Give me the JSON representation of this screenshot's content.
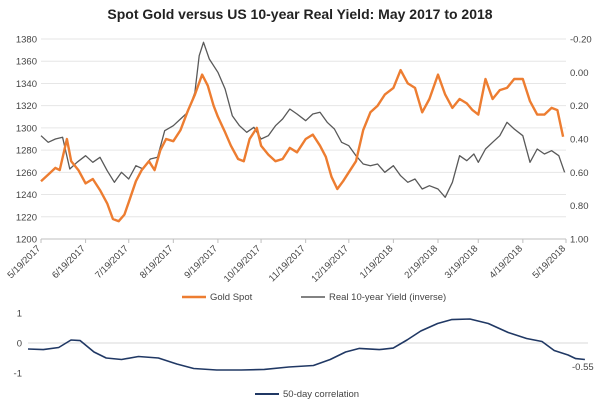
{
  "chart_data": [
    {
      "type": "line",
      "title": "Spot Gold versus US 10-year Real Yield: May 2017 to 2018",
      "x_ticks": [
        "5/19/2017",
        "6/19/2017",
        "7/19/2017",
        "8/19/2017",
        "9/19/2017",
        "10/19/2017",
        "11/19/2017",
        "12/19/2017",
        "1/19/2018",
        "2/19/2018",
        "3/19/2018",
        "4/19/2018",
        "5/19/2018"
      ],
      "y_left": {
        "ylim": [
          1200,
          1380
        ],
        "ticks": [
          "1200",
          "1220",
          "1240",
          "1260",
          "1280",
          "1300",
          "1320",
          "1340",
          "1360",
          "1380"
        ]
      },
      "y_right": {
        "ylim": [
          -0.2,
          1.0
        ],
        "inverted": true,
        "ticks": [
          "-0.20",
          "0.00",
          "0.20",
          "0.40",
          "0.60",
          "0.80",
          "1.00"
        ]
      },
      "grid": {
        "horizontal": true
      },
      "legend": {
        "position": "bottom"
      },
      "series": [
        {
          "name": "Gold Spot",
          "axis": "left",
          "color": "#ED7D31",
          "points": [
            [
              "2017-05-19",
              1252
            ],
            [
              "2017-05-24",
              1258
            ],
            [
              "2017-05-29",
              1264
            ],
            [
              "2017-06-01",
              1262
            ],
            [
              "2017-06-06",
              1290
            ],
            [
              "2017-06-09",
              1270
            ],
            [
              "2017-06-14",
              1262
            ],
            [
              "2017-06-19",
              1250
            ],
            [
              "2017-06-24",
              1254
            ],
            [
              "2017-06-29",
              1244
            ],
            [
              "2017-07-04",
              1232
            ],
            [
              "2017-07-08",
              1218
            ],
            [
              "2017-07-12",
              1216
            ],
            [
              "2017-07-16",
              1222
            ],
            [
              "2017-07-19",
              1233
            ],
            [
              "2017-07-24",
              1252
            ],
            [
              "2017-07-28",
              1262
            ],
            [
              "2017-08-02",
              1270
            ],
            [
              "2017-08-06",
              1262
            ],
            [
              "2017-08-10",
              1280
            ],
            [
              "2017-08-14",
              1290
            ],
            [
              "2017-08-19",
              1288
            ],
            [
              "2017-08-24",
              1298
            ],
            [
              "2017-08-29",
              1315
            ],
            [
              "2017-09-03",
              1330
            ],
            [
              "2017-09-08",
              1348
            ],
            [
              "2017-09-12",
              1338
            ],
            [
              "2017-09-16",
              1320
            ],
            [
              "2017-09-19",
              1310
            ],
            [
              "2017-09-24",
              1296
            ],
            [
              "2017-09-28",
              1284
            ],
            [
              "2017-10-03",
              1272
            ],
            [
              "2017-10-07",
              1270
            ],
            [
              "2017-10-11",
              1290
            ],
            [
              "2017-10-16",
              1300
            ],
            [
              "2017-10-19",
              1284
            ],
            [
              "2017-10-24",
              1276
            ],
            [
              "2017-10-29",
              1270
            ],
            [
              "2017-11-03",
              1272
            ],
            [
              "2017-11-08",
              1282
            ],
            [
              "2017-11-13",
              1278
            ],
            [
              "2017-11-19",
              1290
            ],
            [
              "2017-11-24",
              1294
            ],
            [
              "2017-11-29",
              1284
            ],
            [
              "2017-12-03",
              1274
            ],
            [
              "2017-12-07",
              1256
            ],
            [
              "2017-12-11",
              1245
            ],
            [
              "2017-12-15",
              1252
            ],
            [
              "2017-12-19",
              1260
            ],
            [
              "2017-12-24",
              1270
            ],
            [
              "2017-12-29",
              1298
            ],
            [
              "2018-01-03",
              1314
            ],
            [
              "2018-01-08",
              1320
            ],
            [
              "2018-01-13",
              1330
            ],
            [
              "2018-01-19",
              1336
            ],
            [
              "2018-01-24",
              1352
            ],
            [
              "2018-01-29",
              1340
            ],
            [
              "2018-02-03",
              1336
            ],
            [
              "2018-02-08",
              1314
            ],
            [
              "2018-02-13",
              1326
            ],
            [
              "2018-02-19",
              1348
            ],
            [
              "2018-02-24",
              1330
            ],
            [
              "2018-03-01",
              1318
            ],
            [
              "2018-03-06",
              1326
            ],
            [
              "2018-03-11",
              1322
            ],
            [
              "2018-03-15",
              1316
            ],
            [
              "2018-03-19",
              1312
            ],
            [
              "2018-03-24",
              1344
            ],
            [
              "2018-03-29",
              1326
            ],
            [
              "2018-04-03",
              1334
            ],
            [
              "2018-04-08",
              1336
            ],
            [
              "2018-04-13",
              1344
            ],
            [
              "2018-04-19",
              1344
            ],
            [
              "2018-04-24",
              1324
            ],
            [
              "2018-04-29",
              1312
            ],
            [
              "2018-05-04",
              1312
            ],
            [
              "2018-05-09",
              1318
            ],
            [
              "2018-05-13",
              1316
            ],
            [
              "2018-05-17",
              1292
            ]
          ]
        },
        {
          "name": "Real 10-year Yield (inverse)",
          "axis": "right",
          "color": "#595959",
          "points": [
            [
              "2017-05-19",
              0.38
            ],
            [
              "2017-05-24",
              0.42
            ],
            [
              "2017-05-29",
              0.4
            ],
            [
              "2017-06-03",
              0.39
            ],
            [
              "2017-06-08",
              0.58
            ],
            [
              "2017-06-13",
              0.54
            ],
            [
              "2017-06-19",
              0.5
            ],
            [
              "2017-06-24",
              0.54
            ],
            [
              "2017-06-29",
              0.51
            ],
            [
              "2017-07-04",
              0.59
            ],
            [
              "2017-07-09",
              0.66
            ],
            [
              "2017-07-14",
              0.6
            ],
            [
              "2017-07-19",
              0.64
            ],
            [
              "2017-07-24",
              0.56
            ],
            [
              "2017-07-29",
              0.58
            ],
            [
              "2017-08-03",
              0.52
            ],
            [
              "2017-08-08",
              0.51
            ],
            [
              "2017-08-13",
              0.35
            ],
            [
              "2017-08-19",
              0.32
            ],
            [
              "2017-08-24",
              0.28
            ],
            [
              "2017-08-29",
              0.24
            ],
            [
              "2017-09-03",
              0.12
            ],
            [
              "2017-09-06",
              -0.1
            ],
            [
              "2017-09-09",
              -0.18
            ],
            [
              "2017-09-13",
              -0.08
            ],
            [
              "2017-09-19",
              0.0
            ],
            [
              "2017-09-24",
              0.1
            ],
            [
              "2017-09-29",
              0.26
            ],
            [
              "2017-10-04",
              0.32
            ],
            [
              "2017-10-09",
              0.36
            ],
            [
              "2017-10-14",
              0.33
            ],
            [
              "2017-10-19",
              0.4
            ],
            [
              "2017-10-24",
              0.38
            ],
            [
              "2017-10-29",
              0.32
            ],
            [
              "2017-11-03",
              0.28
            ],
            [
              "2017-11-08",
              0.22
            ],
            [
              "2017-11-13",
              0.25
            ],
            [
              "2017-11-19",
              0.29
            ],
            [
              "2017-11-24",
              0.25
            ],
            [
              "2017-11-29",
              0.24
            ],
            [
              "2017-12-04",
              0.3
            ],
            [
              "2017-12-09",
              0.34
            ],
            [
              "2017-12-14",
              0.42
            ],
            [
              "2017-12-19",
              0.44
            ],
            [
              "2017-12-24",
              0.5
            ],
            [
              "2017-12-29",
              0.55
            ],
            [
              "2018-01-03",
              0.56
            ],
            [
              "2018-01-08",
              0.55
            ],
            [
              "2018-01-13",
              0.6
            ],
            [
              "2018-01-19",
              0.56
            ],
            [
              "2018-01-24",
              0.62
            ],
            [
              "2018-01-29",
              0.66
            ],
            [
              "2018-02-03",
              0.64
            ],
            [
              "2018-02-08",
              0.7
            ],
            [
              "2018-02-13",
              0.68
            ],
            [
              "2018-02-19",
              0.7
            ],
            [
              "2018-02-24",
              0.75
            ],
            [
              "2018-03-01",
              0.66
            ],
            [
              "2018-03-06",
              0.5
            ],
            [
              "2018-03-11",
              0.53
            ],
            [
              "2018-03-16",
              0.49
            ],
            [
              "2018-03-19",
              0.54
            ],
            [
              "2018-03-24",
              0.46
            ],
            [
              "2018-03-29",
              0.42
            ],
            [
              "2018-04-03",
              0.38
            ],
            [
              "2018-04-08",
              0.3
            ],
            [
              "2018-04-13",
              0.34
            ],
            [
              "2018-04-19",
              0.38
            ],
            [
              "2018-04-24",
              0.54
            ],
            [
              "2018-04-29",
              0.46
            ],
            [
              "2018-05-04",
              0.49
            ],
            [
              "2018-05-09",
              0.47
            ],
            [
              "2018-05-14",
              0.5
            ],
            [
              "2018-05-18",
              0.6
            ]
          ]
        }
      ]
    },
    {
      "type": "line",
      "y_ticks": [
        "1",
        "0",
        "-1"
      ],
      "ylim": [
        -1,
        1
      ],
      "legend": {
        "position": "bottom"
      },
      "end_label": "-0.55",
      "series": [
        {
          "name": "50-day correlation",
          "color": "#203864",
          "points": [
            [
              "2017-05-19",
              -0.2
            ],
            [
              "2017-05-29",
              -0.22
            ],
            [
              "2017-06-08",
              -0.15
            ],
            [
              "2017-06-16",
              0.1
            ],
            [
              "2017-06-22",
              0.08
            ],
            [
              "2017-07-01",
              -0.3
            ],
            [
              "2017-07-09",
              -0.5
            ],
            [
              "2017-07-19",
              -0.55
            ],
            [
              "2017-07-30",
              -0.45
            ],
            [
              "2017-08-12",
              -0.5
            ],
            [
              "2017-08-24",
              -0.7
            ],
            [
              "2017-09-04",
              -0.85
            ],
            [
              "2017-09-19",
              -0.9
            ],
            [
              "2017-10-05",
              -0.9
            ],
            [
              "2017-10-20",
              -0.88
            ],
            [
              "2017-11-05",
              -0.8
            ],
            [
              "2017-11-21",
              -0.75
            ],
            [
              "2017-12-02",
              -0.55
            ],
            [
              "2017-12-12",
              -0.3
            ],
            [
              "2017-12-21",
              -0.18
            ],
            [
              "2018-01-03",
              -0.22
            ],
            [
              "2018-01-12",
              -0.17
            ],
            [
              "2018-01-21",
              0.1
            ],
            [
              "2018-01-30",
              0.4
            ],
            [
              "2018-02-10",
              0.65
            ],
            [
              "2018-02-19",
              0.78
            ],
            [
              "2018-03-03",
              0.8
            ],
            [
              "2018-03-15",
              0.65
            ],
            [
              "2018-03-28",
              0.35
            ],
            [
              "2018-04-09",
              0.15
            ],
            [
              "2018-04-19",
              0.05
            ],
            [
              "2018-04-27",
              -0.25
            ],
            [
              "2018-05-06",
              -0.4
            ],
            [
              "2018-05-11",
              -0.52
            ],
            [
              "2018-05-17",
              -0.55
            ]
          ]
        }
      ]
    }
  ]
}
